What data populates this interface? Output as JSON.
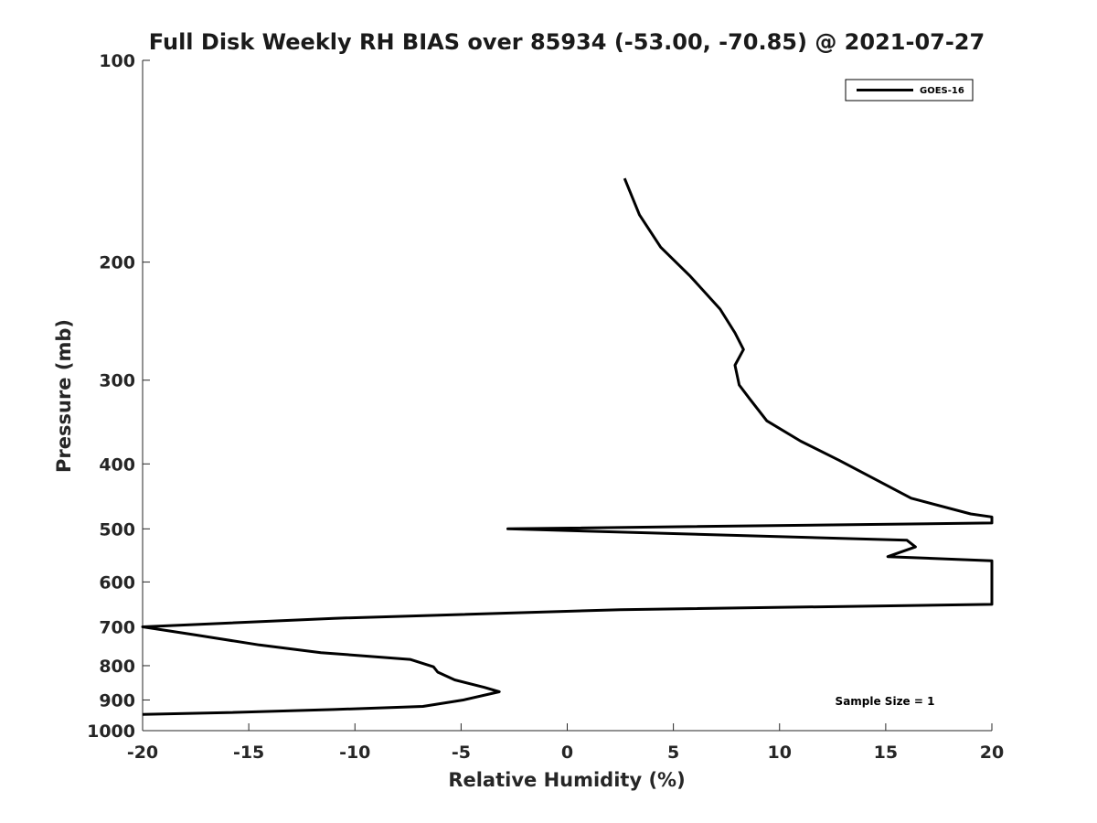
{
  "chart_data": {
    "type": "line",
    "title": "Full Disk Weekly RH BIAS over 85934 (-53.00, -70.85) @ 2021-07-27",
    "xlabel": "Relative Humidity (%)",
    "ylabel": "Pressure (mb)",
    "xlim": [
      -20,
      20
    ],
    "ylim": [
      1000,
      100
    ],
    "y_scale": "log",
    "x_ticks": [
      "-20",
      "-15",
      "-10",
      "-5",
      "0",
      "5",
      "10",
      "15",
      "20"
    ],
    "y_ticks": [
      "100",
      "200",
      "300",
      "400",
      "500",
      "600",
      "700",
      "800",
      "900",
      "1000"
    ],
    "grid": false,
    "legend_position": "top-right",
    "annotation": "Sample Size = 1",
    "series": [
      {
        "name": "GOES-16",
        "color": "#000000",
        "points": [
          [
            2.7,
            150
          ],
          [
            3.4,
            170
          ],
          [
            4.4,
            190
          ],
          [
            5.8,
            210
          ],
          [
            7.2,
            235
          ],
          [
            7.9,
            255
          ],
          [
            8.3,
            270
          ],
          [
            7.9,
            285
          ],
          [
            8.1,
            305
          ],
          [
            8.6,
            320
          ],
          [
            9.4,
            345
          ],
          [
            11.0,
            370
          ],
          [
            12.8,
            395
          ],
          [
            14.4,
            420
          ],
          [
            16.2,
            450
          ],
          [
            19.0,
            475
          ],
          [
            20.0,
            480
          ],
          [
            20.0,
            490
          ],
          [
            -2.8,
            500
          ],
          [
            16.0,
            520
          ],
          [
            16.4,
            532
          ],
          [
            15.1,
            550
          ],
          [
            20.0,
            558
          ],
          [
            20.0,
            648
          ],
          [
            2.5,
            660
          ],
          [
            -11.0,
            680
          ],
          [
            -20.0,
            700
          ],
          [
            -17.5,
            720
          ],
          [
            -14.5,
            745
          ],
          [
            -11.6,
            765
          ],
          [
            -7.4,
            783
          ],
          [
            -6.3,
            803
          ],
          [
            -6.1,
            818
          ],
          [
            -5.3,
            840
          ],
          [
            -3.9,
            862
          ],
          [
            -3.2,
            875
          ],
          [
            -4.9,
            900
          ],
          [
            -6.8,
            920
          ],
          [
            -11.0,
            930
          ],
          [
            -16.0,
            940
          ],
          [
            -20.0,
            946
          ]
        ]
      }
    ]
  }
}
